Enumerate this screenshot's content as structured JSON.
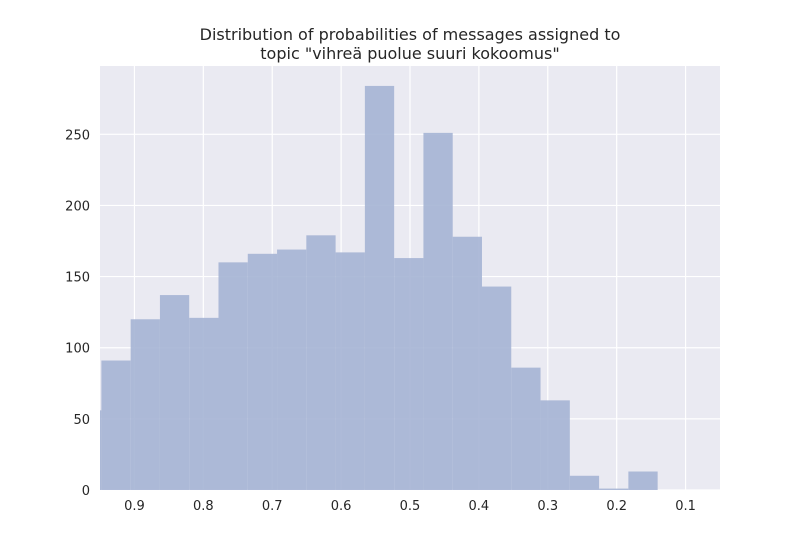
{
  "chart_data": {
    "type": "bar",
    "title_lines": [
      "Distribution of probabilities of messages assigned to",
      "topic \"vihreä puolue suuri kokoomus\""
    ],
    "xlabel": "",
    "ylabel": "",
    "x_reversed": true,
    "xlim": [
      0.95,
      0.05
    ],
    "ylim": [
      0,
      298
    ],
    "x_ticks": [
      0.9,
      0.8,
      0.7,
      0.6,
      0.5,
      0.4,
      0.3,
      0.2,
      0.1
    ],
    "x_tick_labels": [
      "0.9",
      "0.8",
      "0.7",
      "0.6",
      "0.5",
      "0.4",
      "0.3",
      "0.2",
      "0.1"
    ],
    "y_ticks": [
      0,
      50,
      100,
      150,
      200,
      250
    ],
    "y_tick_labels": [
      "0",
      "50",
      "100",
      "150",
      "200",
      "250"
    ],
    "grid": true,
    "bar_color": "#a5b4d4",
    "bins": [
      {
        "left": 0.948,
        "right": 0.9905,
        "value": 56
      },
      {
        "left": 0.9055,
        "right": 0.948,
        "value": 91
      },
      {
        "left": 0.863,
        "right": 0.9055,
        "value": 120
      },
      {
        "left": 0.8205,
        "right": 0.863,
        "value": 137
      },
      {
        "left": 0.778,
        "right": 0.8205,
        "value": 121
      },
      {
        "left": 0.7355,
        "right": 0.778,
        "value": 160
      },
      {
        "left": 0.693,
        "right": 0.7355,
        "value": 166
      },
      {
        "left": 0.6505,
        "right": 0.693,
        "value": 169
      },
      {
        "left": 0.608,
        "right": 0.6505,
        "value": 179
      },
      {
        "left": 0.5655,
        "right": 0.608,
        "value": 167
      },
      {
        "left": 0.523,
        "right": 0.5655,
        "value": 284
      },
      {
        "left": 0.4805,
        "right": 0.523,
        "value": 163
      },
      {
        "left": 0.438,
        "right": 0.4805,
        "value": 251
      },
      {
        "left": 0.3955,
        "right": 0.438,
        "value": 178
      },
      {
        "left": 0.353,
        "right": 0.3955,
        "value": 143
      },
      {
        "left": 0.3105,
        "right": 0.353,
        "value": 86
      },
      {
        "left": 0.268,
        "right": 0.3105,
        "value": 63
      },
      {
        "left": 0.2255,
        "right": 0.268,
        "value": 10
      },
      {
        "left": 0.183,
        "right": 0.2255,
        "value": 1
      },
      {
        "left": 0.1405,
        "right": 0.183,
        "value": 13
      }
    ]
  }
}
